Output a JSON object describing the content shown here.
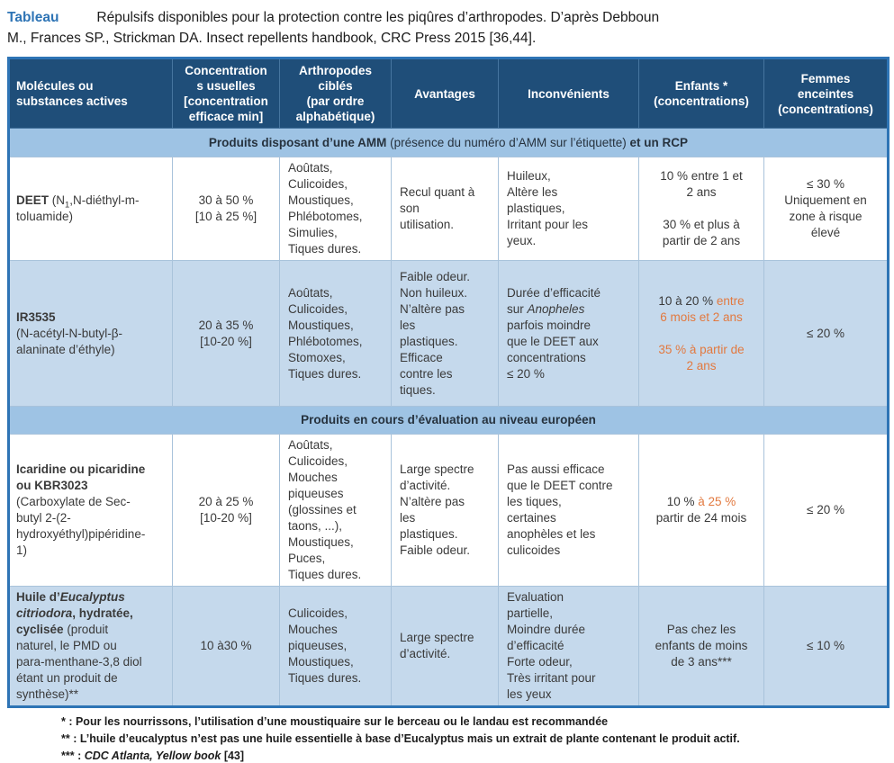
{
  "caption": {
    "label": "Tableau",
    "text": "Répulsifs disponibles pour la protection contre les piqûres d’arthropodes. D’après Debboun\nM., Frances SP., Strickman DA. Insect repellents handbook, CRC Press 2015 [36,44]."
  },
  "colors": {
    "header_bg": "#1F4E79",
    "band_bg": "#9EC3E4",
    "alt_row_bg": "#C5D9EC",
    "table_border": "#2E74B5",
    "accent_orange": "#E2793F",
    "caption_label_blue": "#2E74B5",
    "header_text": "#FFFFFF",
    "body_text": "#3A3A3A"
  },
  "table": {
    "columns": [
      "Molécules ou\nsubstances actives",
      "Concentration\ns usuelles\n[concentration\nefficace min]",
      "Arthropodes\nciblés\n(par ordre\nalphabétique)",
      "Avantages",
      "Inconvénients",
      "Enfants *\n(concentrations)",
      "Femmes\nenceintes\n(concentrations)"
    ],
    "bands": [
      [
        {
          "t": "Produits disposant d’une AMM ",
          "s": "b"
        },
        {
          "t": "(présence du numéro d’AMM sur l’étiquette)",
          "s": ""
        },
        {
          "t": " et un RCP",
          "s": "b"
        }
      ],
      [
        {
          "t": "Produits en cours d’évaluation au niveau européen",
          "s": "b"
        }
      ]
    ],
    "rows": [
      {
        "id": "deet",
        "cells": [
          [
            {
              "t": "DEET ",
              "s": "b"
            },
            {
              "t": "(N",
              "s": ""
            },
            {
              "t": "1",
              "s": "sub"
            },
            {
              "t": ",N-diéthyl-m-\ntoluamide)",
              "s": ""
            }
          ],
          [
            {
              "t": "30 à 50 %\n[10 à 25 %]",
              "s": ""
            }
          ],
          [
            {
              "t": "Aoûtats,\nCulicoides,\nMoustiques,\nPhlébotomes,\nSimulies,\nTiques dures.",
              "s": ""
            }
          ],
          [
            {
              "t": "Recul quant à\nson\nutilisation.",
              "s": ""
            }
          ],
          [
            {
              "t": "Huileux,\nAltère les\nplastiques,\nIrritant pour les\nyeux.",
              "s": ""
            }
          ],
          [
            {
              "t": "10 % entre 1 et\n2 ans\n\n30 % et plus à\npartir de 2 ans",
              "s": ""
            }
          ],
          [
            {
              "t": "≤ 30 %\nUniquement en\nzone à risque\nélevé",
              "s": ""
            }
          ]
        ]
      },
      {
        "id": "ir3535",
        "cells": [
          [
            {
              "t": "IR3535",
              "s": "b"
            },
            {
              "t": "\n(N-acétyl-N-butyl-β-\nalaninate d’éthyle)",
              "s": ""
            }
          ],
          [
            {
              "t": "20 à 35 %\n[10-20 %]",
              "s": ""
            }
          ],
          [
            {
              "t": "Aoûtats,\nCulicoides,\nMoustiques,\nPhlébotomes,\nStomoxes,\nTiques dures.",
              "s": ""
            }
          ],
          [
            {
              "t": "Faible odeur.\nNon huileux.\nN’altère pas\nles\nplastiques.\nEfficace\ncontre les\ntiques.",
              "s": ""
            }
          ],
          [
            {
              "t": "Durée d’efficacité\nsur ",
              "s": ""
            },
            {
              "t": "Anopheles",
              "s": "i"
            },
            {
              "t": "\nparfois moindre\nque le DEET aux\nconcentrations\n≤ 20 %",
              "s": ""
            }
          ],
          [
            {
              "t": "10 à 20 % ",
              "s": ""
            },
            {
              "t": "entre\n6 mois et 2 ans",
              "s": "o"
            },
            {
              "t": "\n\n",
              "s": ""
            },
            {
              "t": "35 % à partir de\n2 ans",
              "s": "o"
            }
          ],
          [
            {
              "t": "≤ 20 %",
              "s": ""
            }
          ]
        ]
      },
      {
        "id": "icaridine",
        "cells": [
          [
            {
              "t": "Icaridine ou picaridine\nou KBR3023",
              "s": "b"
            },
            {
              "t": "\n(Carboxylate de Sec-\nbutyl 2-(2-\nhydroxyéthyl)pipéridine-\n1)",
              "s": ""
            }
          ],
          [
            {
              "t": "20 à 25 %\n[10-20 %]",
              "s": ""
            }
          ],
          [
            {
              "t": "Aoûtats,\nCulicoides,\nMouches\npiqueuses\n(glossines et\ntaons, ...),\nMoustiques,\nPuces,\nTiques dures.",
              "s": ""
            }
          ],
          [
            {
              "t": "Large spectre\nd’activité.\nN’altère pas\nles\nplastiques.\nFaible odeur.",
              "s": ""
            }
          ],
          [
            {
              "t": "Pas aussi efficace\nque le DEET contre\nles tiques,\ncertaines\nanophèles et les\nculicoides",
              "s": ""
            }
          ],
          [
            {
              "t": "10 % ",
              "s": ""
            },
            {
              "t": "à 25 %",
              "s": "o"
            },
            {
              "t": "\npartir de 24 mois",
              "s": ""
            }
          ],
          [
            {
              "t": "≤ 20 %",
              "s": ""
            }
          ]
        ]
      },
      {
        "id": "eucalyptus",
        "cells": [
          [
            {
              "t": "Huile d’",
              "s": "b"
            },
            {
              "t": "Eucalyptus\ncitriodora",
              "s": "b i"
            },
            {
              "t": ", hydratée,\ncyclisée ",
              "s": "b"
            },
            {
              "t": "(produit\nnaturel, le PMD ou\npara-menthane-3,8 diol\nétant un produit de\nsynthèse)**",
              "s": ""
            }
          ],
          [
            {
              "t": "10 à30 %",
              "s": ""
            }
          ],
          [
            {
              "t": "Culicoides,\nMouches\npiqueuses,\nMoustiques,\nTiques dures.",
              "s": ""
            }
          ],
          [
            {
              "t": "Large spectre\nd’activité.",
              "s": ""
            }
          ],
          [
            {
              "t": "Evaluation\npartielle,\nMoindre durée\nd’efficacité\nForte odeur,\nTrès irritant pour\nles yeux",
              "s": ""
            }
          ],
          [
            {
              "t": "Pas chez les\nenfants de moins\nde 3 ans***",
              "s": ""
            }
          ],
          [
            {
              "t": "≤ 10 %",
              "s": ""
            }
          ]
        ]
      }
    ]
  },
  "footnotes": [
    [
      {
        "t": "* : Pour les nourrissons, l’utilisation d’une moustiquaire sur le berceau ou le landau est recommandée",
        "s": "b"
      }
    ],
    [
      {
        "t": "** : L’huile d’eucalyptus n’est pas une huile essentielle à base d’Eucalyptus mais un extrait de plante contenant le produit actif.",
        "s": "b"
      }
    ],
    [
      {
        "t": "*** : ",
        "s": "b"
      },
      {
        "t": "CDC Atlanta, Yellow book",
        "s": "b i"
      },
      {
        "t": " [43]",
        "s": "b"
      }
    ]
  ]
}
